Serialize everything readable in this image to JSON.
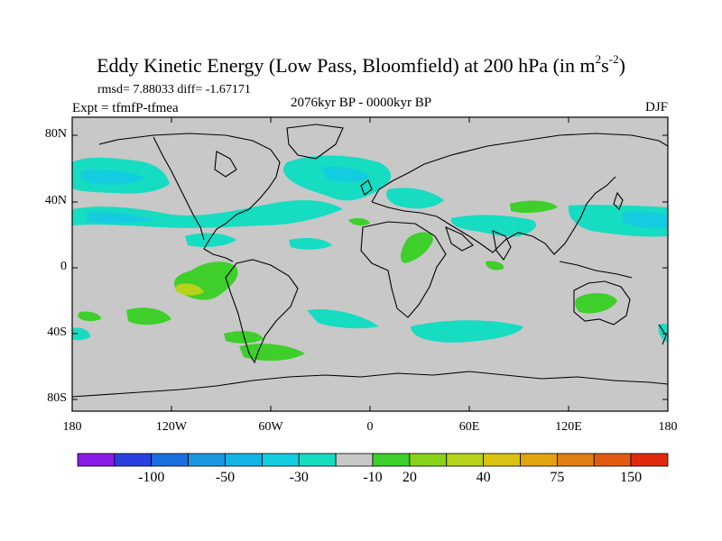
{
  "title": {
    "main": "Eddy Kinetic Energy (Low Pass, Bloomfield) at 200 hPa (in m",
    "sup1": "2",
    "mid": "s",
    "sup2": "-2",
    "end": ")"
  },
  "stats": "rmsd= 7.88033 diff= -1.67171",
  "experiment": "Expt = tfmfP-tfmea",
  "period": "2076kyr BP - 0000kyr BP",
  "season": "DJF",
  "lat_labels": [
    "80N",
    "40N",
    "0",
    "40S",
    "80S"
  ],
  "lon_labels": [
    "180",
    "120W",
    "60W",
    "0",
    "60E",
    "120E",
    "180"
  ],
  "colorbar": {
    "labels": [
      "-100",
      "-50",
      "-30",
      "-10",
      "20",
      "40",
      "75",
      "150"
    ],
    "colors": [
      "#8a1ce8",
      "#2a3fe0",
      "#1a6fe0",
      "#1a97e0",
      "#14b4e6",
      "#14cce0",
      "#16dcc2",
      "#c8c8c8",
      "#3ecf2a",
      "#88d21c",
      "#b6d21a",
      "#d8c212",
      "#e0a410",
      "#e07e12",
      "#e05a12",
      "#e02a10"
    ]
  },
  "colors": {
    "background": "#c8c8c8",
    "teal": "#16dcc2",
    "cyan": "#14cce0",
    "green": "#3ecf2a",
    "yellowgreen": "#b6d21a"
  }
}
